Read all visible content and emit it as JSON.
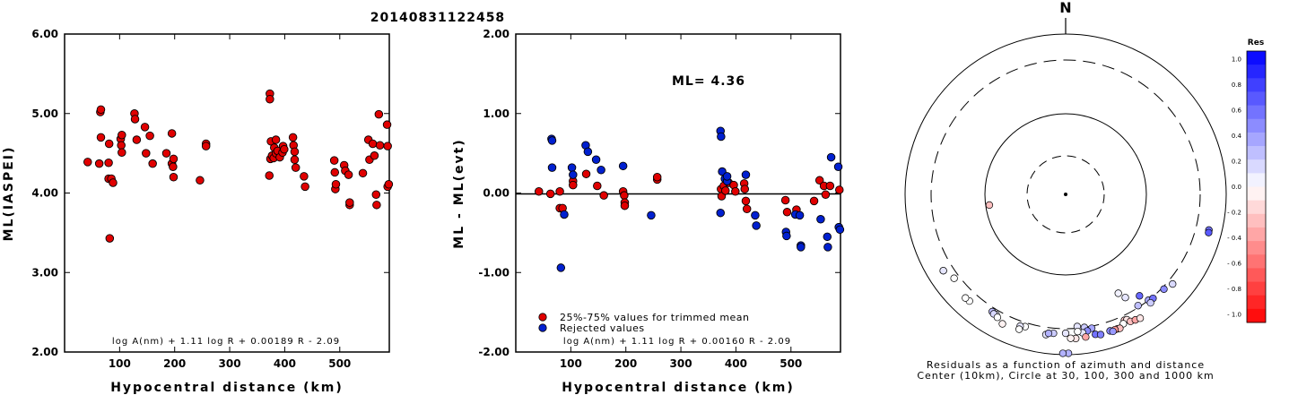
{
  "figure_title": "20140831122458",
  "chart_data": [
    {
      "type": "scatter",
      "xlabel": "Hypocentral distance (km)",
      "ylabel": "ML(IASPEI)",
      "xlim": [
        0,
        590
      ],
      "ylim": [
        2.0,
        6.0
      ],
      "xticks": [
        "100",
        "200",
        "300",
        "400",
        "500"
      ],
      "yticks": [
        "2.00",
        "3.00",
        "4.00",
        "5.00",
        "6.00"
      ],
      "formula": "log A(nm) + 1.11 log R + 0.00189 R - 2.09",
      "series": [
        {
          "color": "#e00000",
          "points": [
            [
              42,
              4.39
            ],
            [
              63,
              4.37
            ],
            [
              65,
              5.02
            ],
            [
              66,
              5.05
            ],
            [
              66,
              4.7
            ],
            [
              80,
              4.38
            ],
            [
              81,
              4.62
            ],
            [
              80,
              4.18
            ],
            [
              82,
              3.43
            ],
            [
              85,
              4.18
            ],
            [
              88,
              4.13
            ],
            [
              102,
              4.68
            ],
            [
              103,
              4.6
            ],
            [
              104,
              4.73
            ],
            [
              104,
              4.51
            ],
            [
              127,
              5.0
            ],
            [
              128,
              4.93
            ],
            [
              131,
              4.67
            ],
            [
              146,
              4.83
            ],
            [
              148,
              4.5
            ],
            [
              155,
              4.72
            ],
            [
              160,
              4.37
            ],
            [
              185,
              4.5
            ],
            [
              195,
              4.75
            ],
            [
              195,
              4.37
            ],
            [
              197,
              4.33
            ],
            [
              198,
              4.43
            ],
            [
              198,
              4.2
            ],
            [
              246,
              4.16
            ],
            [
              257,
              4.62
            ],
            [
              257,
              4.59
            ],
            [
              373,
              5.25
            ],
            [
              373,
              5.18
            ],
            [
              372,
              4.22
            ],
            [
              375,
              4.65
            ],
            [
              374,
              4.43
            ],
            [
              377,
              4.47
            ],
            [
              380,
              4.44
            ],
            [
              381,
              4.57
            ],
            [
              384,
              4.67
            ],
            [
              384,
              4.5
            ],
            [
              387,
              4.53
            ],
            [
              391,
              4.45
            ],
            [
              396,
              4.51
            ],
            [
              397,
              4.59
            ],
            [
              399,
              4.55
            ],
            [
              415,
              4.7
            ],
            [
              416,
              4.6
            ],
            [
              418,
              4.52
            ],
            [
              418,
              4.42
            ],
            [
              420,
              4.32
            ],
            [
              435,
              4.21
            ],
            [
              437,
              4.08
            ],
            [
              490,
              4.41
            ],
            [
              491,
              4.26
            ],
            [
              492,
              4.05
            ],
            [
              493,
              4.11
            ],
            [
              508,
              4.35
            ],
            [
              510,
              4.28
            ],
            [
              516,
              4.23
            ],
            [
              518,
              3.85
            ],
            [
              518,
              3.88
            ],
            [
              542,
              4.25
            ],
            [
              552,
              4.67
            ],
            [
              554,
              4.42
            ],
            [
              560,
              4.62
            ],
            [
              563,
              4.47
            ],
            [
              566,
              3.98
            ],
            [
              567,
              3.85
            ],
            [
              571,
              4.99
            ],
            [
              573,
              4.6
            ],
            [
              586,
              4.86
            ],
            [
              587,
              4.59
            ],
            [
              587,
              4.08
            ],
            [
              589,
              4.11
            ]
          ]
        }
      ]
    },
    {
      "type": "scatter",
      "xlabel": "Hypocentral distance (km)",
      "ylabel": "ML - ML(evt)",
      "xlim": [
        0,
        590
      ],
      "ylim": [
        -2.0,
        2.0
      ],
      "xticks": [
        "100",
        "200",
        "300",
        "400",
        "500"
      ],
      "yticks": [
        "-2.00",
        "-1.00",
        "0.00",
        "1.00",
        "2.00"
      ],
      "annotation": "ML= 4.36",
      "formula": "log A(nm) + 1.11 log R + 0.00160 R - 2.09",
      "legend": {
        "position": "bottom-left",
        "entries": [
          {
            "label": "25%-75% values for trimmed mean",
            "color": "#e00000"
          },
          {
            "label": "Rejected values",
            "color": "#0020d0"
          }
        ]
      },
      "series": [
        {
          "label": "25%-75% values for trimmed mean",
          "color": "#e00000",
          "points": [
            [
              42,
              0.02
            ],
            [
              63,
              -0.01
            ],
            [
              80,
              0.02
            ],
            [
              80,
              -0.19
            ],
            [
              85,
              -0.19
            ],
            [
              104,
              0.15
            ],
            [
              104,
              0.1
            ],
            [
              128,
              0.24
            ],
            [
              148,
              0.09
            ],
            [
              160,
              -0.03
            ],
            [
              195,
              0.02
            ],
            [
              197,
              -0.03
            ],
            [
              198,
              -0.12
            ],
            [
              198,
              -0.16
            ],
            [
              257,
              0.17
            ],
            [
              257,
              0.2
            ],
            [
              373,
              0.05
            ],
            [
              374,
              -0.04
            ],
            [
              378,
              0.09
            ],
            [
              381,
              0.03
            ],
            [
              387,
              0.13
            ],
            [
              396,
              0.1
            ],
            [
              399,
              0.02
            ],
            [
              415,
              0.12
            ],
            [
              416,
              0.05
            ],
            [
              418,
              -0.1
            ],
            [
              420,
              -0.2
            ],
            [
              490,
              -0.09
            ],
            [
              493,
              -0.24
            ],
            [
              510,
              -0.21
            ],
            [
              542,
              -0.1
            ],
            [
              552,
              0.16
            ],
            [
              560,
              0.09
            ],
            [
              563,
              -0.02
            ],
            [
              571,
              0.09
            ],
            [
              588,
              0.04
            ]
          ]
        },
        {
          "label": "Rejected values",
          "color": "#0020d0",
          "points": [
            [
              65,
              0.68
            ],
            [
              66,
              0.66
            ],
            [
              66,
              0.32
            ],
            [
              82,
              -0.94
            ],
            [
              88,
              -0.27
            ],
            [
              102,
              0.32
            ],
            [
              104,
              0.23
            ],
            [
              127,
              0.6
            ],
            [
              131,
              0.52
            ],
            [
              146,
              0.42
            ],
            [
              155,
              0.29
            ],
            [
              195,
              0.34
            ],
            [
              246,
              -0.28
            ],
            [
              372,
              0.78
            ],
            [
              373,
              0.71
            ],
            [
              372,
              -0.25
            ],
            [
              375,
              0.27
            ],
            [
              380,
              0.18
            ],
            [
              384,
              0.15
            ],
            [
              384,
              0.21
            ],
            [
              418,
              0.23
            ],
            [
              435,
              -0.28
            ],
            [
              437,
              -0.41
            ],
            [
              491,
              -0.49
            ],
            [
              492,
              -0.54
            ],
            [
              508,
              -0.27
            ],
            [
              516,
              -0.28
            ],
            [
              518,
              -0.66
            ],
            [
              518,
              -0.68
            ],
            [
              554,
              -0.33
            ],
            [
              566,
              -0.55
            ],
            [
              567,
              -0.68
            ],
            [
              573,
              0.45
            ],
            [
              586,
              0.33
            ],
            [
              587,
              -0.43
            ],
            [
              589,
              -0.46
            ]
          ]
        }
      ]
    },
    {
      "type": "scatter",
      "north_label": "N",
      "caption_line1": "Residuals as a function of azimuth and distance",
      "caption_line2": "Center (10km), Circle at 30, 100, 300 and 1000 km",
      "rings_km": [
        30,
        100,
        300,
        1000
      ],
      "colorbar": {
        "title": "Res",
        "ticks": [
          "1.0",
          "0.8",
          "0.6",
          "0.4",
          "0.2",
          "0.0",
          "- 0.2",
          "- 0.4",
          "- 0.6",
          "- 0.8",
          "- 1.0"
        ],
        "range": [
          -1.0,
          1.0
        ]
      },
      "points_az_dist_res": [
        [
          179,
          940,
          0.3
        ],
        [
          181,
          940,
          0.3
        ],
        [
          262,
          90,
          -0.25
        ],
        [
          104,
          550,
          0.55
        ],
        [
          105,
          560,
          0.65
        ],
        [
          152,
          190,
          0.05
        ],
        [
          150,
          220,
          0.1
        ],
        [
          144,
          250,
          0.6
        ],
        [
          142,
          300,
          0.35
        ],
        [
          147,
          290,
          0.25
        ],
        [
          140,
          320,
          0.55
        ],
        [
          134,
          330,
          0.45
        ],
        [
          142,
          350,
          0.2
        ],
        [
          130,
          380,
          0.15
        ],
        [
          155,
          370,
          -0.2
        ],
        [
          154,
          380,
          -0.1
        ],
        [
          175,
          290,
          0.1
        ],
        [
          172,
          300,
          0.2
        ],
        [
          169,
          330,
          0.35
        ],
        [
          171,
          360,
          0.45
        ],
        [
          173,
          380,
          0.1
        ],
        [
          175,
          350,
          0.0
        ],
        [
          180,
          370,
          0.1
        ],
        [
          185,
          380,
          0.2
        ],
        [
          188,
          420,
          0.1
        ],
        [
          156,
          420,
          0.0
        ],
        [
          153,
          440,
          -0.25
        ],
        [
          151,
          460,
          -0.35
        ],
        [
          149,
          480,
          -0.1
        ],
        [
          168,
          450,
          0.55
        ],
        [
          166,
          480,
          0.5
        ],
        [
          172,
          470,
          -0.35
        ],
        [
          176,
          480,
          -0.1
        ],
        [
          178,
          470,
          -0.05
        ],
        [
          187,
          390,
          0.3
        ],
        [
          197,
          360,
          0.0
        ],
        [
          199,
          380,
          0.1
        ],
        [
          206,
          470,
          -0.05
        ],
        [
          222,
          460,
          0.0
        ],
        [
          224,
          470,
          0.0
        ],
        [
          238,
          470,
          0.0
        ],
        [
          238,
          470,
          0.1
        ],
        [
          233,
          380,
          0.0
        ],
        [
          212,
          360,
          0.25
        ],
        [
          210,
          370,
          0.05
        ],
        [
          211,
          380,
          0.15
        ],
        [
          209,
          400,
          0.0
        ],
        [
          199,
          440,
          0.0
        ],
        [
          162,
          460,
          0.45
        ],
        [
          159,
          470,
          -0.3
        ],
        [
          158,
          480,
          -0.25
        ],
        [
          160,
          470,
          -0.4
        ],
        [
          161,
          490,
          0.4
        ]
      ]
    }
  ]
}
